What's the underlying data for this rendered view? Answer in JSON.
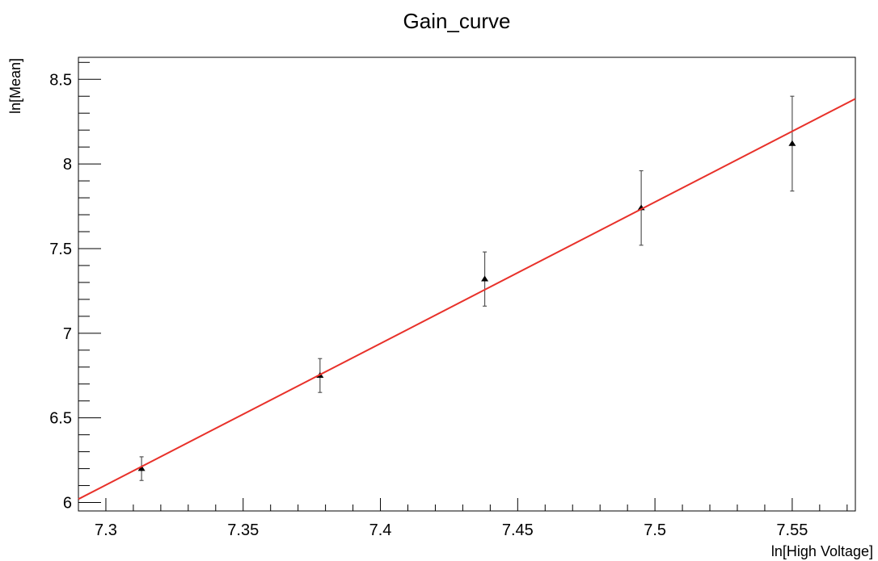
{
  "chart_data": {
    "type": "scatter",
    "title": "Gain_curve",
    "xlabel": "ln[High Voltage]",
    "ylabel": "ln[Mean]",
    "xlim": [
      7.29,
      7.573
    ],
    "ylim": [
      5.95,
      8.63
    ],
    "x_ticks": [
      7.3,
      7.35,
      7.4,
      7.45,
      7.5,
      7.55
    ],
    "x_tick_labels": [
      "7.3",
      "7.35",
      "7.4",
      "7.45",
      "7.5",
      "7.55"
    ],
    "y_ticks": [
      6,
      6.5,
      7,
      7.5,
      8,
      8.5
    ],
    "y_tick_labels": [
      "6",
      "6.5",
      "7",
      "7.5",
      "8",
      "8.5"
    ],
    "grid": false,
    "legend": "none",
    "series": [
      {
        "type": "points_with_errors",
        "marker": "triangle",
        "color": "#000000",
        "x": [
          7.313,
          7.378,
          7.438,
          7.495,
          7.55
        ],
        "y": [
          6.2,
          6.75,
          7.32,
          7.74,
          8.12
        ],
        "yerr": [
          0.07,
          0.1,
          0.16,
          0.22,
          0.28
        ]
      },
      {
        "type": "fit_line",
        "color": "#e8312a",
        "x": [
          7.29,
          7.573
        ],
        "y": [
          6.02,
          8.385
        ]
      }
    ]
  }
}
